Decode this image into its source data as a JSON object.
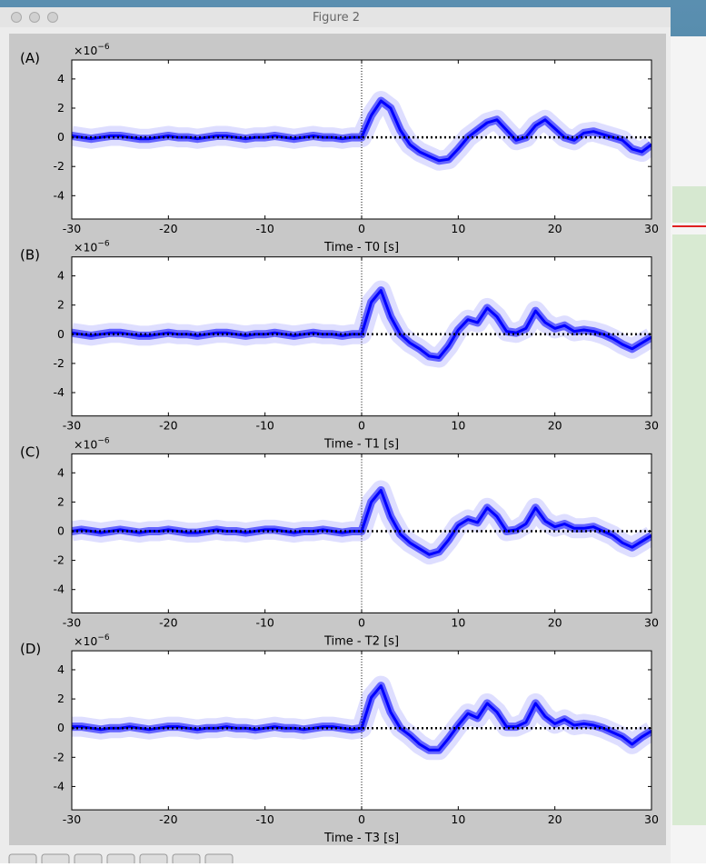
{
  "window_title": "Figure 2",
  "chart_data": [
    {
      "type": "line",
      "panel_label": "(A)",
      "offset_base": "×10",
      "offset_exp": "−6",
      "x_label": "Time - T0 [s]",
      "color": "#0000ff",
      "xlim": [
        -30,
        30
      ],
      "ylim": [
        -5.6,
        5.3
      ],
      "xticks": [
        -30,
        -20,
        -10,
        0,
        10,
        20,
        30
      ],
      "yticks": [
        -4,
        -2,
        0,
        2,
        4
      ],
      "hlines": [
        0
      ],
      "vlines": [
        0
      ],
      "x": [
        -30,
        -29,
        -28,
        -27,
        -26,
        -25,
        -24,
        -23,
        -22,
        -21,
        -20,
        -19,
        -18,
        -17,
        -16,
        -15,
        -14,
        -13,
        -12,
        -11,
        -10,
        -9,
        -8,
        -7,
        -6,
        -5,
        -4,
        -3,
        -2,
        -1,
        0,
        1,
        2,
        3,
        4,
        5,
        6,
        7,
        8,
        9,
        10,
        11,
        12,
        13,
        14,
        15,
        16,
        17,
        18,
        19,
        20,
        21,
        22,
        23,
        24,
        25,
        26,
        27,
        28,
        29,
        30
      ],
      "values": [
        0.1,
        0,
        -0.1,
        0,
        0.1,
        0.1,
        0,
        -0.1,
        -0.1,
        0,
        0.1,
        0,
        0,
        -0.1,
        0,
        0.1,
        0.1,
        0,
        -0.1,
        0,
        0,
        0.1,
        0,
        -0.1,
        0,
        0.1,
        0,
        0,
        -0.1,
        0,
        0,
        1.5,
        2.5,
        2,
        0.5,
        -0.5,
        -1,
        -1.3,
        -1.6,
        -1.5,
        -0.8,
        0,
        0.5,
        1,
        1.2,
        0.5,
        -0.2,
        0,
        0.8,
        1.2,
        0.6,
        0,
        -0.2,
        0.3,
        0.4,
        0.2,
        0,
        -0.2,
        -0.8,
        -1,
        -0.5
      ]
    },
    {
      "type": "line",
      "panel_label": "(B)",
      "offset_base": "×10",
      "offset_exp": "−6",
      "x_label": "Time - T1 [s]",
      "color": "#0000ff",
      "xlim": [
        -30,
        30
      ],
      "ylim": [
        -5.6,
        5.3
      ],
      "xticks": [
        -30,
        -20,
        -10,
        0,
        10,
        20,
        30
      ],
      "yticks": [
        -4,
        -2,
        0,
        2,
        4
      ],
      "hlines": [
        0
      ],
      "vlines": [
        0
      ],
      "x": [
        -30,
        -29,
        -28,
        -27,
        -26,
        -25,
        -24,
        -23,
        -22,
        -21,
        -20,
        -19,
        -18,
        -17,
        -16,
        -15,
        -14,
        -13,
        -12,
        -11,
        -10,
        -9,
        -8,
        -7,
        -6,
        -5,
        -4,
        -3,
        -2,
        -1,
        0,
        1,
        2,
        3,
        4,
        5,
        6,
        7,
        8,
        9,
        10,
        11,
        12,
        13,
        14,
        15,
        16,
        17,
        18,
        19,
        20,
        21,
        22,
        23,
        24,
        25,
        26,
        27,
        28,
        29,
        30
      ],
      "values": [
        0.1,
        0,
        -0.1,
        0,
        0.1,
        0.1,
        0,
        -0.1,
        -0.1,
        0,
        0.1,
        0,
        0,
        -0.1,
        0,
        0.1,
        0.1,
        0,
        -0.1,
        0,
        0,
        0.1,
        0,
        -0.1,
        0,
        0.1,
        0,
        0,
        -0.1,
        0,
        0,
        2.2,
        3,
        1.2,
        0,
        -0.6,
        -1,
        -1.5,
        -1.6,
        -0.8,
        0.3,
        1,
        0.8,
        1.8,
        1.2,
        0.2,
        0.1,
        0.4,
        1.6,
        0.8,
        0.4,
        0.6,
        0.2,
        0.3,
        0.2,
        0,
        -0.3,
        -0.7,
        -1,
        -0.6,
        -0.2
      ]
    },
    {
      "type": "line",
      "panel_label": "(C)",
      "offset_base": "×10",
      "offset_exp": "−6",
      "x_label": "Time - T2 [s]",
      "color": "#0000ff",
      "xlim": [
        -30,
        30
      ],
      "ylim": [
        -5.6,
        5.3
      ],
      "xticks": [
        -30,
        -20,
        -10,
        0,
        10,
        20,
        30
      ],
      "yticks": [
        -4,
        -2,
        0,
        2,
        4
      ],
      "hlines": [
        0
      ],
      "vlines": [
        0
      ],
      "x": [
        -30,
        -29,
        -28,
        -27,
        -26,
        -25,
        -24,
        -23,
        -22,
        -21,
        -20,
        -19,
        -18,
        -17,
        -16,
        -15,
        -14,
        -13,
        -12,
        -11,
        -10,
        -9,
        -8,
        -7,
        -6,
        -5,
        -4,
        -3,
        -2,
        -1,
        0,
        1,
        2,
        3,
        4,
        5,
        6,
        7,
        8,
        9,
        10,
        11,
        12,
        13,
        14,
        15,
        16,
        17,
        18,
        19,
        20,
        21,
        22,
        23,
        24,
        25,
        26,
        27,
        28,
        29,
        30
      ],
      "values": [
        0,
        0.1,
        0,
        -0.1,
        0,
        0.1,
        0,
        -0.1,
        0,
        0,
        0.1,
        0,
        -0.1,
        -0.1,
        0,
        0.1,
        0,
        0,
        -0.1,
        0,
        0.1,
        0.1,
        0,
        -0.1,
        0,
        0,
        0.1,
        0,
        -0.1,
        0,
        0,
        2,
        2.8,
        1,
        -0.2,
        -0.8,
        -1.2,
        -1.6,
        -1.4,
        -0.6,
        0.4,
        0.8,
        0.6,
        1.6,
        1,
        0,
        0.1,
        0.5,
        1.6,
        0.7,
        0.3,
        0.5,
        0.2,
        0.2,
        0.3,
        0,
        -0.3,
        -0.8,
        -1.1,
        -0.7,
        -0.3
      ]
    },
    {
      "type": "line",
      "panel_label": "(D)",
      "offset_base": "×10",
      "offset_exp": "−6",
      "x_label": "Time - T3 [s]",
      "color": "#0000ff",
      "xlim": [
        -30,
        30
      ],
      "ylim": [
        -5.6,
        5.3
      ],
      "xticks": [
        -30,
        -20,
        -10,
        0,
        10,
        20,
        30
      ],
      "yticks": [
        -4,
        -2,
        0,
        2,
        4
      ],
      "hlines": [
        0
      ],
      "vlines": [
        0
      ],
      "x": [
        -30,
        -29,
        -28,
        -27,
        -26,
        -25,
        -24,
        -23,
        -22,
        -21,
        -20,
        -19,
        -18,
        -17,
        -16,
        -15,
        -14,
        -13,
        -12,
        -11,
        -10,
        -9,
        -8,
        -7,
        -6,
        -5,
        -4,
        -3,
        -2,
        -1,
        0,
        1,
        2,
        3,
        4,
        5,
        6,
        7,
        8,
        9,
        10,
        11,
        12,
        13,
        14,
        15,
        16,
        17,
        18,
        19,
        20,
        21,
        22,
        23,
        24,
        25,
        26,
        27,
        28,
        29,
        30
      ],
      "values": [
        0.1,
        0.1,
        0,
        -0.1,
        0,
        0,
        0.1,
        0,
        -0.1,
        0,
        0.1,
        0.1,
        0,
        -0.1,
        0,
        0,
        0.1,
        0,
        0,
        -0.1,
        0,
        0.1,
        0,
        0,
        -0.1,
        0,
        0.1,
        0.1,
        0,
        -0.1,
        0,
        2.1,
        2.9,
        1.1,
        0,
        -0.5,
        -1.1,
        -1.5,
        -1.5,
        -0.7,
        0.2,
        1,
        0.7,
        1.7,
        1.1,
        0.1,
        0.1,
        0.4,
        1.7,
        0.8,
        0.3,
        0.6,
        0.2,
        0.3,
        0.2,
        0,
        -0.3,
        -0.6,
        -1.1,
        -0.6,
        -0.2
      ]
    }
  ]
}
